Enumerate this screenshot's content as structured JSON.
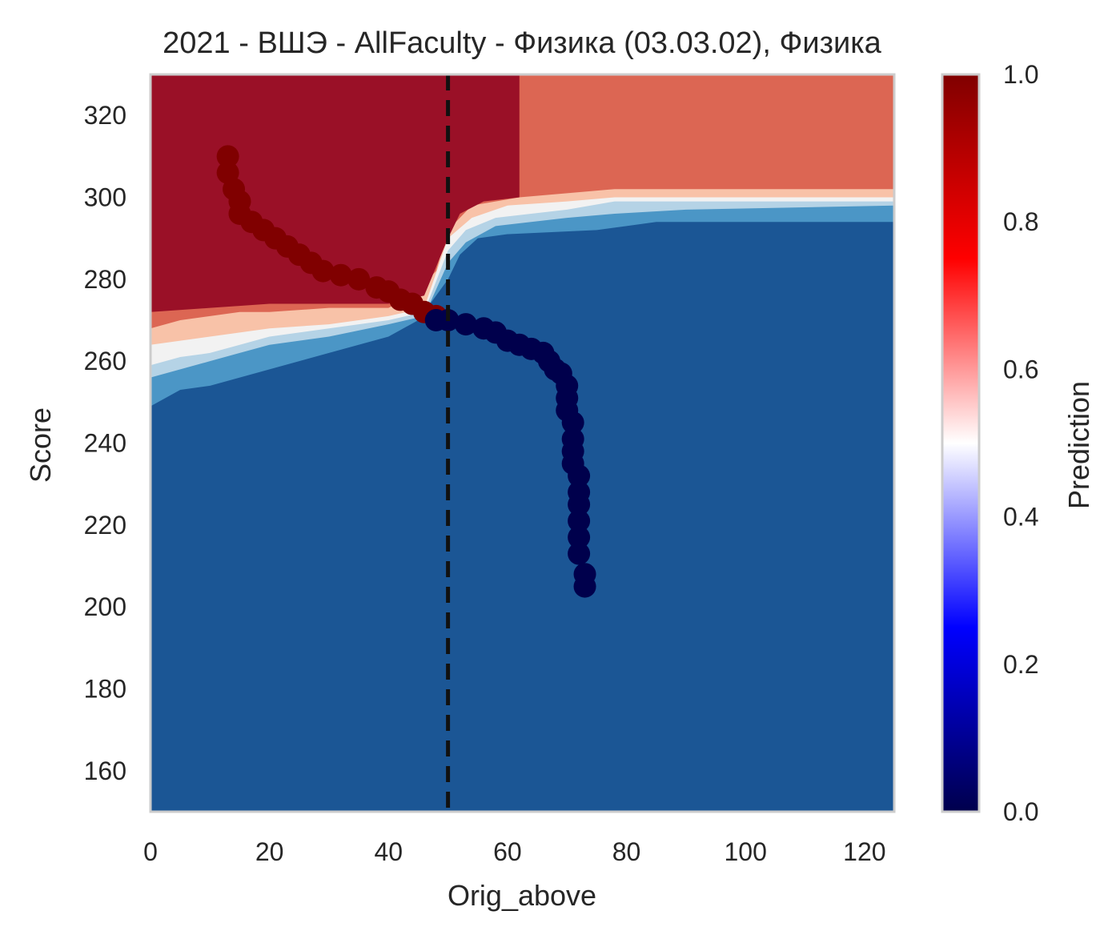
{
  "chart_data": {
    "type": "heatmap",
    "title": "2021 - ВШЭ - AllFaculty - Физика (03.03.02), Физика",
    "xlabel": "Orig_above",
    "ylabel": "Score",
    "xlim": [
      0,
      125
    ],
    "ylim": [
      150,
      330
    ],
    "x_ticks": [
      "0",
      "20",
      "40",
      "60",
      "80",
      "100",
      "120"
    ],
    "x_tick_values": [
      0,
      20,
      40,
      60,
      80,
      100,
      120
    ],
    "y_ticks": [
      "160",
      "180",
      "200",
      "220",
      "240",
      "260",
      "280",
      "300",
      "320"
    ],
    "y_tick_values": [
      160,
      180,
      200,
      220,
      240,
      260,
      280,
      300,
      320
    ],
    "grid": false,
    "colorbar": {
      "label": "Prediction",
      "range": [
        0,
        1
      ],
      "ticks": [
        "0.0",
        "0.2",
        "0.4",
        "0.6",
        "0.8",
        "1.0"
      ],
      "tick_values": [
        0,
        0.2,
        0.4,
        0.6,
        0.8,
        1.0
      ],
      "colormap": "seismic"
    },
    "contour_colors": {
      "level_high": "#9a1027",
      "level_mid_high": "#dc6653",
      "level_light_red": "#f8c2a8",
      "level_white": "#f2f2f2",
      "level_light_blue": "#b5d3e6",
      "level_mid_blue": "#4b96c6",
      "level_low": "#1b5695"
    },
    "vertical_line": {
      "x": 50,
      "style": "dashed",
      "color": "#111111"
    },
    "series": [
      {
        "marker": "circle",
        "color": "#800000",
        "points": [
          [
            13,
            310
          ],
          [
            13,
            306
          ],
          [
            14,
            302
          ],
          [
            15,
            299
          ],
          [
            15,
            296
          ],
          [
            17,
            294
          ],
          [
            19,
            292
          ],
          [
            21,
            290
          ],
          [
            23,
            288
          ],
          [
            25,
            286
          ],
          [
            27,
            284
          ],
          [
            29,
            282
          ],
          [
            32,
            281
          ],
          [
            35,
            280
          ],
          [
            38,
            278
          ],
          [
            40,
            277
          ],
          [
            42,
            275
          ],
          [
            44,
            274
          ],
          [
            46,
            272
          ],
          [
            48,
            271
          ]
        ]
      },
      {
        "marker": "circle",
        "color": "#00004c",
        "points": [
          [
            48,
            270
          ],
          [
            50,
            270
          ],
          [
            53,
            269
          ],
          [
            56,
            268
          ],
          [
            58,
            267
          ],
          [
            60,
            265
          ],
          [
            62,
            264
          ],
          [
            64,
            263
          ],
          [
            66,
            262
          ],
          [
            67,
            260
          ],
          [
            68,
            258
          ],
          [
            69,
            257
          ],
          [
            70,
            254
          ],
          [
            70,
            251
          ],
          [
            70,
            248
          ],
          [
            71,
            245
          ],
          [
            71,
            241
          ],
          [
            71,
            238
          ],
          [
            71,
            235
          ],
          [
            72,
            232
          ],
          [
            72,
            228
          ],
          [
            72,
            225
          ],
          [
            72,
            221
          ],
          [
            72,
            217
          ],
          [
            72,
            213
          ],
          [
            73,
            208
          ],
          [
            73,
            205
          ]
        ]
      }
    ]
  }
}
